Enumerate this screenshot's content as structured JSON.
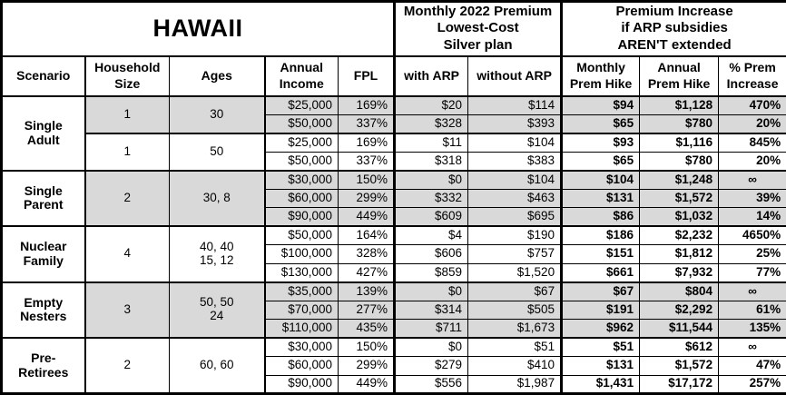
{
  "title": "HAWAII",
  "header": {
    "premium_group": "Monthly 2022 Premium\nLowest-Cost\nSilver plan",
    "increase_group": "Premium Increase\nif ARP subsidies\nAREN'T extended",
    "columns": [
      "Scenario",
      "Household\nSize",
      "Ages",
      "Annual\nIncome",
      "FPL",
      "with ARP",
      "without ARP",
      "Monthly\nPrem Hike",
      "Annual\nPrem Hike",
      "% Prem\nIncrease"
    ]
  },
  "colors": {
    "shaded_row": "#d9d9d9",
    "border": "#000000",
    "background": "#ffffff"
  },
  "groups": [
    {
      "scenario": "Single\nAdult",
      "subgroups": [
        {
          "household_size": "1",
          "ages": "30",
          "shaded": true,
          "rows": [
            {
              "income": "$25,000",
              "fpl": "169%",
              "with_arp": "$20",
              "without_arp": "$114",
              "monthly_hike": "$94",
              "annual_hike": "$1,128",
              "pct_increase": "470%"
            },
            {
              "income": "$50,000",
              "fpl": "337%",
              "with_arp": "$328",
              "without_arp": "$393",
              "monthly_hike": "$65",
              "annual_hike": "$780",
              "pct_increase": "20%"
            }
          ]
        },
        {
          "household_size": "1",
          "ages": "50",
          "shaded": false,
          "rows": [
            {
              "income": "$25,000",
              "fpl": "169%",
              "with_arp": "$11",
              "without_arp": "$104",
              "monthly_hike": "$93",
              "annual_hike": "$1,116",
              "pct_increase": "845%"
            },
            {
              "income": "$50,000",
              "fpl": "337%",
              "with_arp": "$318",
              "without_arp": "$383",
              "monthly_hike": "$65",
              "annual_hike": "$780",
              "pct_increase": "20%"
            }
          ]
        }
      ]
    },
    {
      "scenario": "Single\nParent",
      "subgroups": [
        {
          "household_size": "2",
          "ages": "30, 8",
          "shaded": true,
          "rows": [
            {
              "income": "$30,000",
              "fpl": "150%",
              "with_arp": "$0",
              "without_arp": "$104",
              "monthly_hike": "$104",
              "annual_hike": "$1,248",
              "pct_increase": "∞"
            },
            {
              "income": "$60,000",
              "fpl": "299%",
              "with_arp": "$332",
              "without_arp": "$463",
              "monthly_hike": "$131",
              "annual_hike": "$1,572",
              "pct_increase": "39%"
            },
            {
              "income": "$90,000",
              "fpl": "449%",
              "with_arp": "$609",
              "without_arp": "$695",
              "monthly_hike": "$86",
              "annual_hike": "$1,032",
              "pct_increase": "14%"
            }
          ]
        }
      ]
    },
    {
      "scenario": "Nuclear\nFamily",
      "subgroups": [
        {
          "household_size": "4",
          "ages": "40, 40\n15, 12",
          "shaded": false,
          "rows": [
            {
              "income": "$50,000",
              "fpl": "164%",
              "with_arp": "$4",
              "without_arp": "$190",
              "monthly_hike": "$186",
              "annual_hike": "$2,232",
              "pct_increase": "4650%"
            },
            {
              "income": "$100,000",
              "fpl": "328%",
              "with_arp": "$606",
              "without_arp": "$757",
              "monthly_hike": "$151",
              "annual_hike": "$1,812",
              "pct_increase": "25%"
            },
            {
              "income": "$130,000",
              "fpl": "427%",
              "with_arp": "$859",
              "without_arp": "$1,520",
              "monthly_hike": "$661",
              "annual_hike": "$7,932",
              "pct_increase": "77%"
            }
          ]
        }
      ]
    },
    {
      "scenario": "Empty\nNesters",
      "subgroups": [
        {
          "household_size": "3",
          "ages": "50, 50\n24",
          "shaded": true,
          "rows": [
            {
              "income": "$35,000",
              "fpl": "139%",
              "with_arp": "$0",
              "without_arp": "$67",
              "monthly_hike": "$67",
              "annual_hike": "$804",
              "pct_increase": "∞"
            },
            {
              "income": "$70,000",
              "fpl": "277%",
              "with_arp": "$314",
              "without_arp": "$505",
              "monthly_hike": "$191",
              "annual_hike": "$2,292",
              "pct_increase": "61%"
            },
            {
              "income": "$110,000",
              "fpl": "435%",
              "with_arp": "$711",
              "without_arp": "$1,673",
              "monthly_hike": "$962",
              "annual_hike": "$11,544",
              "pct_increase": "135%"
            }
          ]
        }
      ]
    },
    {
      "scenario": "Pre-\nRetirees",
      "subgroups": [
        {
          "household_size": "2",
          "ages": "60, 60",
          "shaded": false,
          "rows": [
            {
              "income": "$30,000",
              "fpl": "150%",
              "with_arp": "$0",
              "without_arp": "$51",
              "monthly_hike": "$51",
              "annual_hike": "$612",
              "pct_increase": "∞"
            },
            {
              "income": "$60,000",
              "fpl": "299%",
              "with_arp": "$279",
              "without_arp": "$410",
              "monthly_hike": "$131",
              "annual_hike": "$1,572",
              "pct_increase": "47%"
            },
            {
              "income": "$90,000",
              "fpl": "449%",
              "with_arp": "$556",
              "without_arp": "$1,987",
              "monthly_hike": "$1,431",
              "annual_hike": "$17,172",
              "pct_increase": "257%"
            }
          ]
        }
      ]
    }
  ]
}
